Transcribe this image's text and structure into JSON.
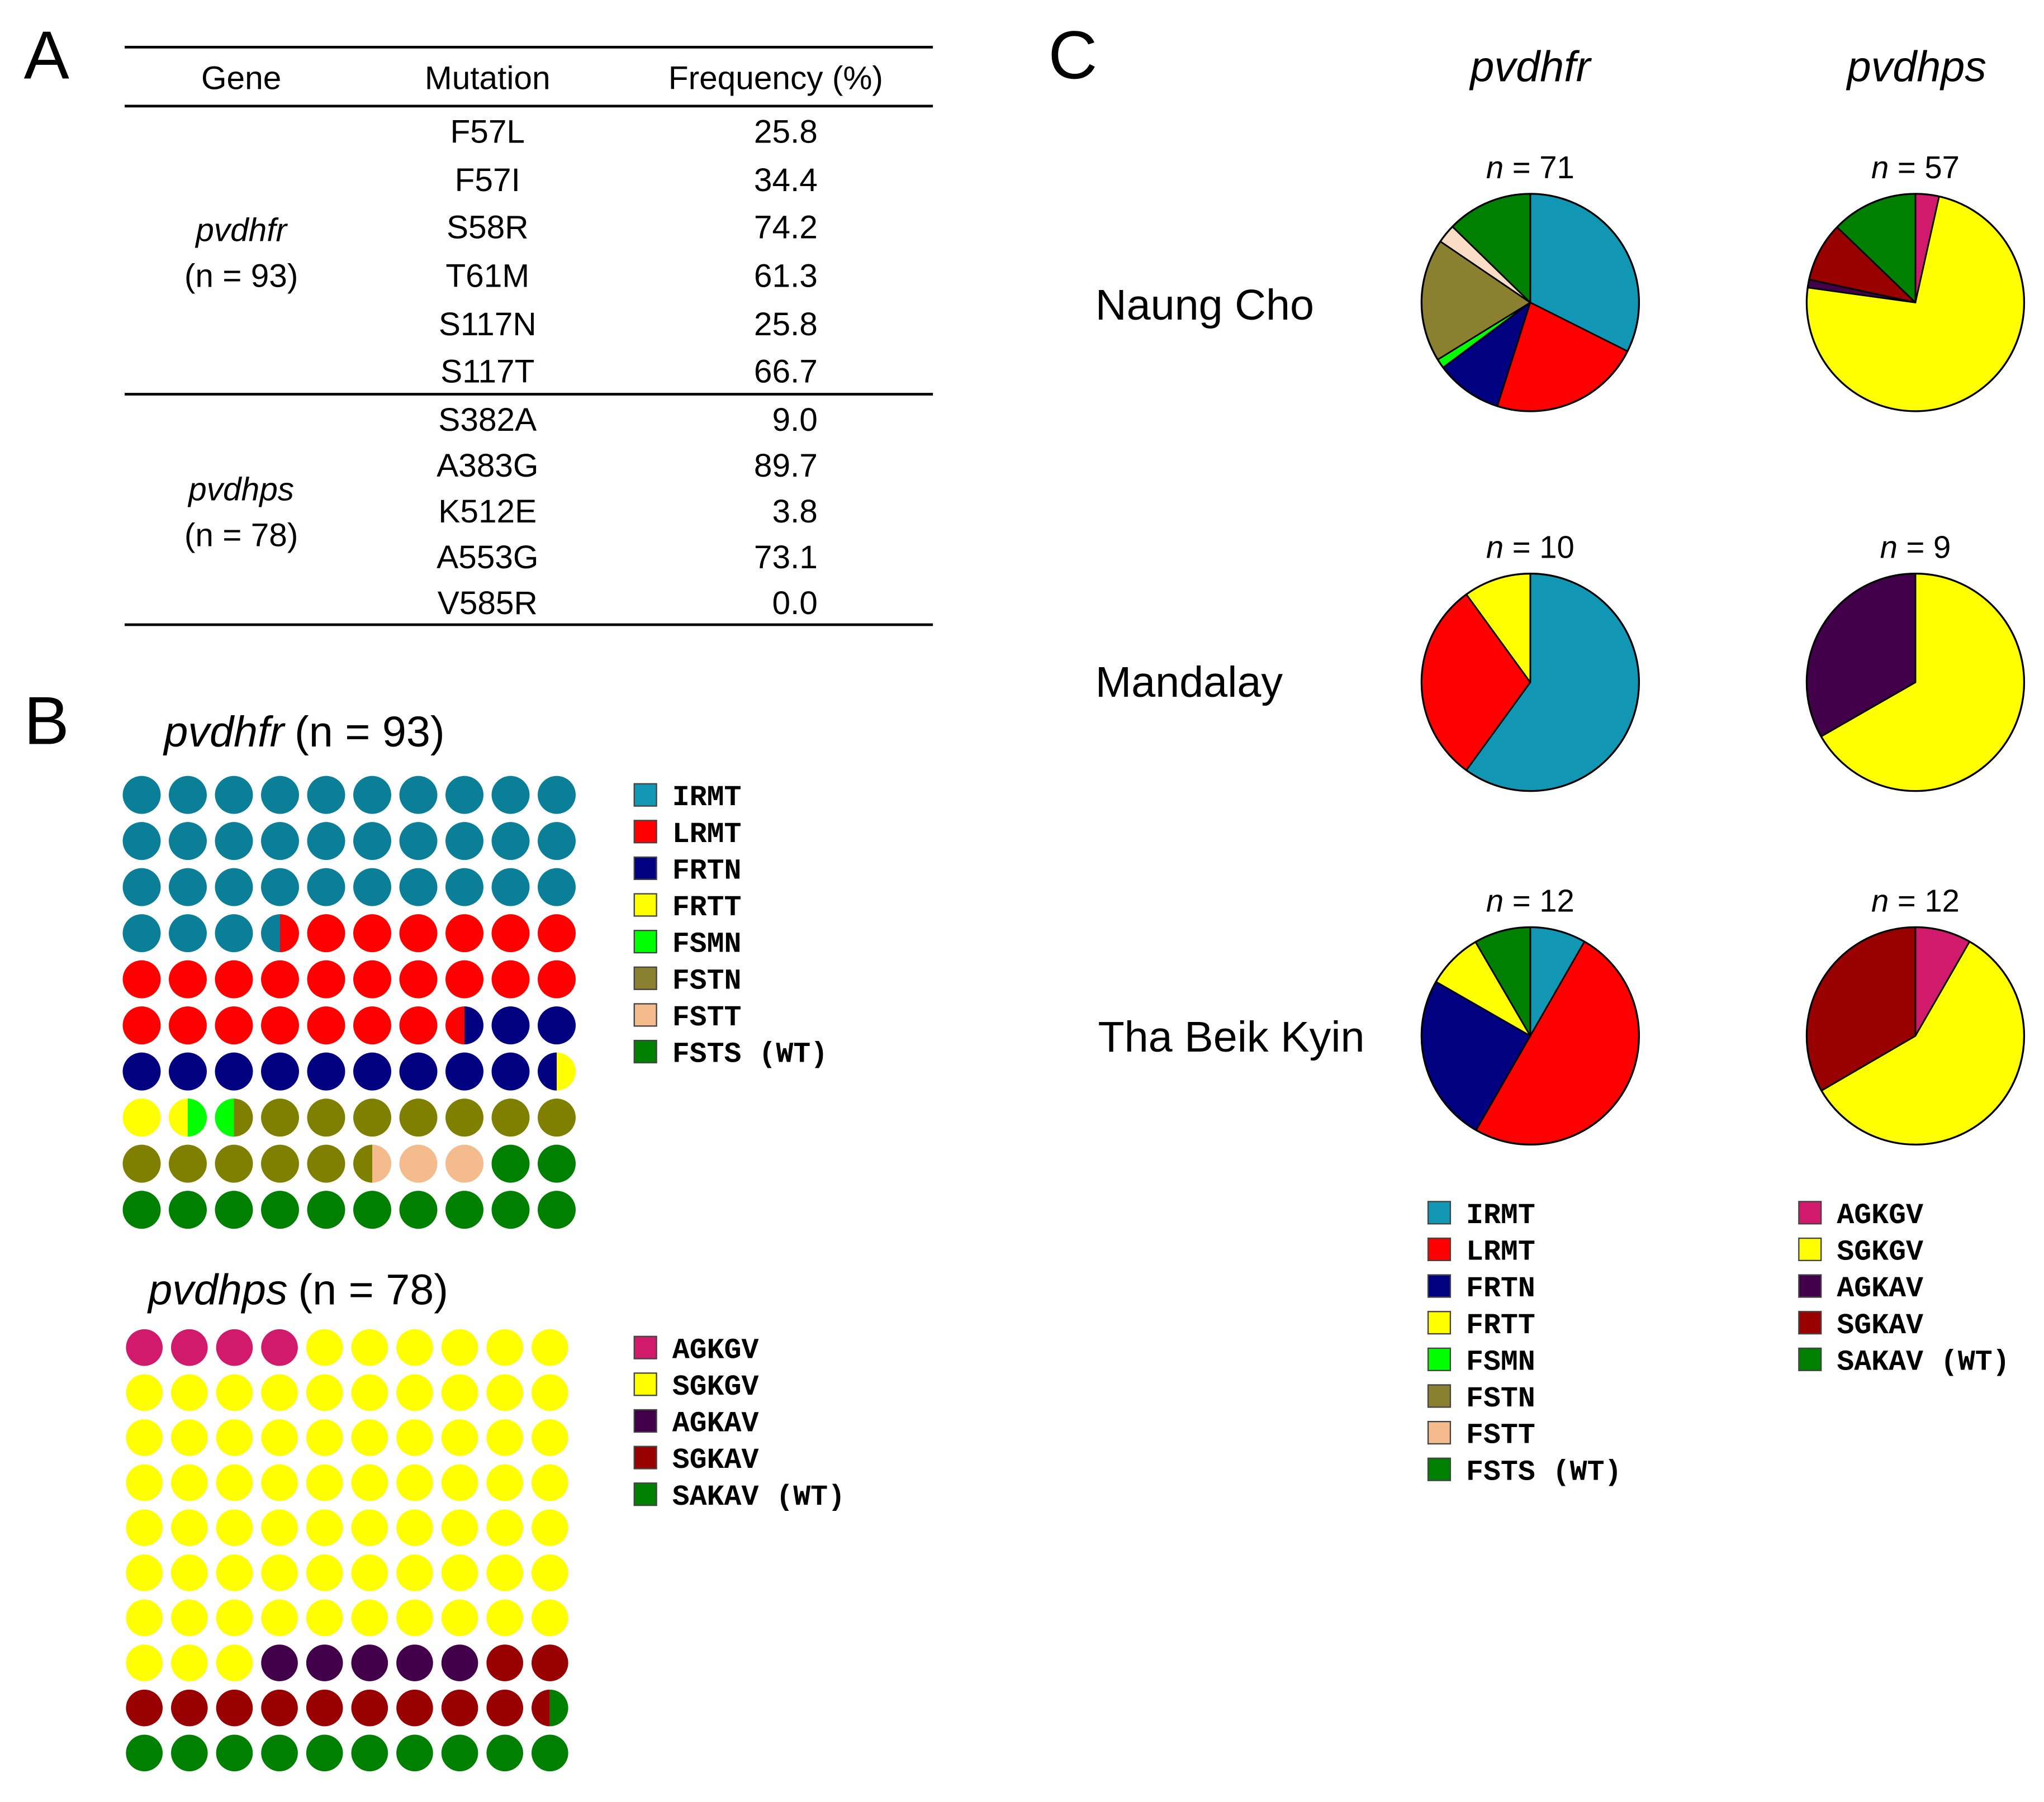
{
  "colors": {
    "IRMT": "#1197b4",
    "IRMT_dot": "#0a7f97",
    "LRMT": "#ff0000",
    "FRTN": "#000080",
    "FRTT": "#ffff00",
    "FSMN": "#00ff00",
    "FSTN": "#8b7f30",
    "FSTN_dot": "#808000",
    "FSTT": "#f4bb8c",
    "FSTT_pie": "#fbdcc4",
    "FSTS": "#008000",
    "AGKGV": "#d21a6d",
    "SGKGV": "#ffff00",
    "AGKAV": "#42004b",
    "SGKAV": "#990000",
    "SAKAV": "#008000"
  },
  "panelA": {
    "label": "A",
    "headers": [
      "Gene",
      "Mutation",
      "Frequency (%)"
    ],
    "groups": [
      {
        "gene": "pvdhfr",
        "n": "(n = 93)",
        "rows": [
          {
            "mutation": "F57L",
            "freq": "25.8"
          },
          {
            "mutation": "F57I",
            "freq": "34.4"
          },
          {
            "mutation": "S58R",
            "freq": "74.2"
          },
          {
            "mutation": "T61M",
            "freq": "61.3"
          },
          {
            "mutation": "S117N",
            "freq": "25.8"
          },
          {
            "mutation": "S117T",
            "freq": "66.7"
          }
        ]
      },
      {
        "gene": "pvdhps",
        "n": "(n = 78)",
        "rows": [
          {
            "mutation": "S382A",
            "freq": "9.0"
          },
          {
            "mutation": "A383G",
            "freq": "89.7"
          },
          {
            "mutation": "K512E",
            "freq": "3.8"
          },
          {
            "mutation": "A553G",
            "freq": "73.1"
          },
          {
            "mutation": "V585R",
            "freq": "0.0"
          }
        ]
      }
    ]
  },
  "panelB": {
    "label": "B",
    "dhfr": {
      "title_gene": "pvdhfr",
      "title_n": "(n = 93)",
      "legend": [
        "IRMT",
        "LRMT",
        "FRTN",
        "FRTT",
        "FSMN",
        "FSTN",
        "FSTT",
        "FSTS (WT)"
      ],
      "legend_keys": [
        "IRMT",
        "LRMT",
        "FRTN",
        "FRTT",
        "FSMN",
        "FSTN",
        "FSTT",
        "FSTS"
      ]
    },
    "dhps": {
      "title_gene": "pvdhps",
      "title_n": "(n = 78)",
      "legend": [
        "AGKGV",
        "SGKGV",
        "AGKAV",
        "SGKAV",
        "SAKAV (WT)"
      ],
      "legend_keys": [
        "AGKGV",
        "SGKGV",
        "AGKAV",
        "SGKAV",
        "SAKAV"
      ]
    }
  },
  "chart_data": [
    {
      "type": "waffle",
      "title": "pvdhfr (n = 93)",
      "grid": [
        10,
        10
      ],
      "categories": [
        "IRMT",
        "LRMT",
        "FRTN",
        "FRTT",
        "FSMN",
        "FSTN",
        "FSTT",
        "FSTS (WT)"
      ],
      "values": [
        33.5,
        24,
        12,
        2,
        1,
        13,
        2.5,
        12
      ]
    },
    {
      "type": "waffle",
      "title": "pvdhps (n = 78)",
      "grid": [
        10,
        10
      ],
      "categories": [
        "AGKGV",
        "SGKGV",
        "AGKAV",
        "SGKAV",
        "SAKAV (WT)"
      ],
      "values": [
        4,
        69,
        5,
        11.5,
        10.5
      ]
    },
    {
      "type": "pie",
      "panel": "C",
      "columns": [
        "pvdhfr",
        "pvdhps"
      ],
      "rows": [
        "Naung Cho",
        "Mandalay",
        "Tha Beik Kyin"
      ],
      "pies": [
        {
          "site": "Naung Cho",
          "gene": "pvdhfr",
          "n": "71",
          "slices": [
            [
              "IRMT",
              32.4
            ],
            [
              "LRMT",
              22.5
            ],
            [
              "FRTN",
              9.9
            ],
            [
              "FSMN",
              1.4
            ],
            [
              "FSTN",
              18.3
            ],
            [
              "FSTT",
              2.8
            ],
            [
              "FSTS",
              12.7
            ]
          ]
        },
        {
          "site": "Naung Cho",
          "gene": "pvdhps",
          "n": "57",
          "slices": [
            [
              "AGKGV",
              3.5
            ],
            [
              "SGKGV",
              73.7
            ],
            [
              "AGKAV",
              1.2
            ],
            [
              "SGKAV",
              8.8
            ],
            [
              "SAKAV",
              12.8
            ]
          ]
        },
        {
          "site": "Mandalay",
          "gene": "pvdhfr",
          "n": "10",
          "slices": [
            [
              "IRMT",
              60
            ],
            [
              "LRMT",
              30
            ],
            [
              "FRTT",
              10
            ]
          ]
        },
        {
          "site": "Mandalay",
          "gene": "pvdhps",
          "n": "9",
          "slices": [
            [
              "SGKGV",
              66.7
            ],
            [
              "AGKAV",
              33.3
            ]
          ]
        },
        {
          "site": "Tha Beik Kyin",
          "gene": "pvdhfr",
          "n": "12",
          "slices": [
            [
              "IRMT",
              8.3
            ],
            [
              "LRMT",
              50
            ],
            [
              "FRTN",
              25
            ],
            [
              "FRTT",
              8.3
            ],
            [
              "FSTS",
              8.4
            ]
          ]
        },
        {
          "site": "Tha Beik Kyin",
          "gene": "pvdhps",
          "n": "12",
          "slices": [
            [
              "AGKGV",
              8.3
            ],
            [
              "SGKGV",
              58.3
            ],
            [
              "SGKAV",
              33.4
            ]
          ]
        }
      ]
    }
  ],
  "panelC": {
    "label": "C",
    "col_dhfr": "pvdhfr",
    "col_dhps": "pvdhps",
    "sites": [
      "Naung Cho",
      "Mandalay",
      "Tha Beik Kyin"
    ],
    "n_prefix": "n",
    "n_eq": " = ",
    "legend_dhfr": [
      "IRMT",
      "LRMT",
      "FRTN",
      "FRTT",
      "FSMN",
      "FSTN",
      "FSTT",
      "FSTS (WT)"
    ],
    "legend_dhfr_keys": [
      "IRMT",
      "LRMT",
      "FRTN",
      "FRTT",
      "FSMN",
      "FSTN",
      "FSTT",
      "FSTS"
    ],
    "legend_dhps": [
      "AGKGV",
      "SGKGV",
      "AGKAV",
      "SGKAV",
      "SAKAV (WT)"
    ],
    "legend_dhps_keys": [
      "AGKGV",
      "SGKGV",
      "AGKAV",
      "SGKAV",
      "SAKAV"
    ]
  }
}
